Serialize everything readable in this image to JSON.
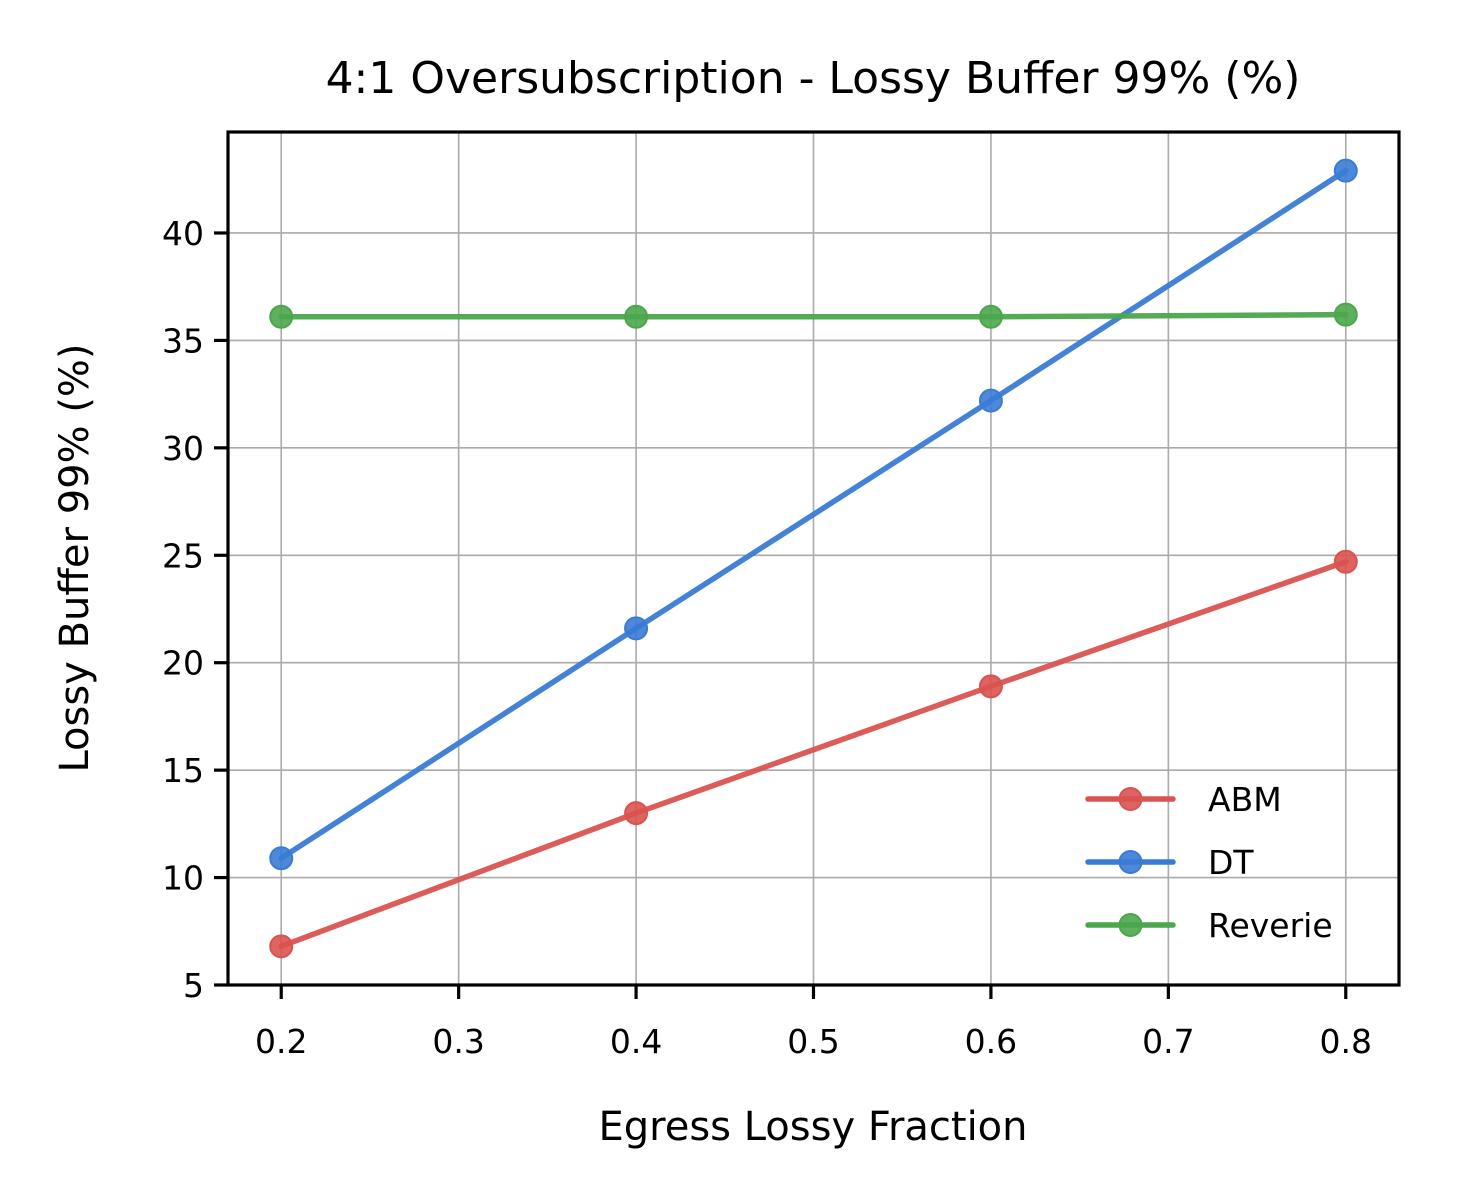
{
  "chart_data": {
    "type": "line",
    "title": "4:1 Oversubscription - Lossy Buffer 99% (%)",
    "xlabel": "Egress Lossy Fraction",
    "ylabel": "Lossy Buffer 99% (%)",
    "x": [
      0.2,
      0.4,
      0.6,
      0.8
    ],
    "xlim": [
      0.17,
      0.83
    ],
    "ylim": [
      5,
      44.7
    ],
    "xticks": [
      0.2,
      0.3,
      0.4,
      0.5,
      0.6,
      0.7,
      0.8
    ],
    "yticks": [
      5,
      10,
      15,
      20,
      25,
      30,
      35,
      40
    ],
    "xtick_labels": [
      "0.2",
      "0.3",
      "0.4",
      "0.5",
      "0.6",
      "0.7",
      "0.8"
    ],
    "ytick_labels": [
      "5",
      "10",
      "15",
      "20",
      "25",
      "30",
      "35",
      "40"
    ],
    "grid": true,
    "legend_position": "lower-right",
    "series": [
      {
        "name": "ABM",
        "color": "#d9534f",
        "values": [
          6.8,
          13.0,
          18.9,
          24.7
        ]
      },
      {
        "name": "DT",
        "color": "#3a7bd5",
        "values": [
          10.9,
          21.6,
          32.2,
          42.9
        ]
      },
      {
        "name": "Reverie",
        "color": "#4ca64c",
        "values": [
          36.1,
          36.1,
          36.1,
          36.2
        ]
      }
    ]
  }
}
